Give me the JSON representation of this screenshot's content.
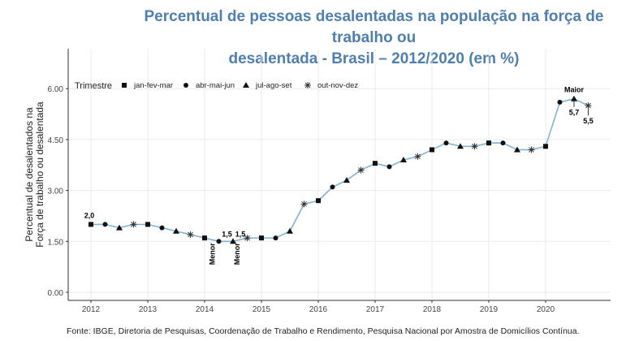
{
  "chart_data": {
    "type": "line",
    "title_line1": "Percentual de pessoas desalentadas na população na força de trabalho ou",
    "title_line2": "desalentada - Brasil – 2012/2020 (em %)",
    "ylabel_line1": "Percentual de desalentados na",
    "ylabel_line2": "Força de trabalho ou desalentada",
    "xlabel": "",
    "ylim": [
      0,
      6.6
    ],
    "yticks": [
      "0.00",
      "1.50",
      "3.00",
      "4.50",
      "6.00"
    ],
    "ytick_values": [
      0,
      1.5,
      3,
      4.5,
      6
    ],
    "xticks": [
      "2012",
      "2013",
      "2014",
      "2015",
      "2016",
      "2017",
      "2018",
      "2019",
      "2020"
    ],
    "grid": true,
    "legend_title": "Trimestre",
    "legend_placement": "top-left",
    "legend": [
      {
        "label": "jan-fev-mar",
        "shape": "square"
      },
      {
        "label": "abr-mai-jun",
        "shape": "circle"
      },
      {
        "label": "jul-ago-set",
        "shape": "triangle"
      },
      {
        "label": "out-nov-dez",
        "shape": "asterisk"
      }
    ],
    "line_color": "#7fb3d5",
    "marker_color": "#111111",
    "start_year": 2012,
    "values": [
      2.0,
      2.0,
      1.9,
      2.0,
      2.0,
      1.9,
      1.8,
      1.7,
      1.6,
      1.5,
      1.5,
      1.6,
      1.6,
      1.6,
      1.8,
      2.6,
      2.7,
      3.1,
      3.3,
      3.6,
      3.8,
      3.7,
      3.9,
      4.0,
      4.2,
      4.4,
      4.3,
      4.3,
      4.4,
      4.4,
      4.2,
      4.2,
      4.3,
      5.6,
      5.7,
      5.5
    ],
    "annotations": [
      {
        "index": 0,
        "label": "2,0"
      },
      {
        "index": 9,
        "label": "1,5",
        "note": "Menor"
      },
      {
        "index": 10,
        "label": "1,5",
        "note": "Menor"
      },
      {
        "index": 34,
        "label": "5,7",
        "note": "Maior"
      },
      {
        "index": 35,
        "label": "5,5"
      }
    ]
  },
  "footer": "Fonte: IBGE, Diretoria de Pesquisas, Coordenação de Trabalho e Rendimento, Pesquisa Nacional por Amostra de Domicílios Contínua."
}
